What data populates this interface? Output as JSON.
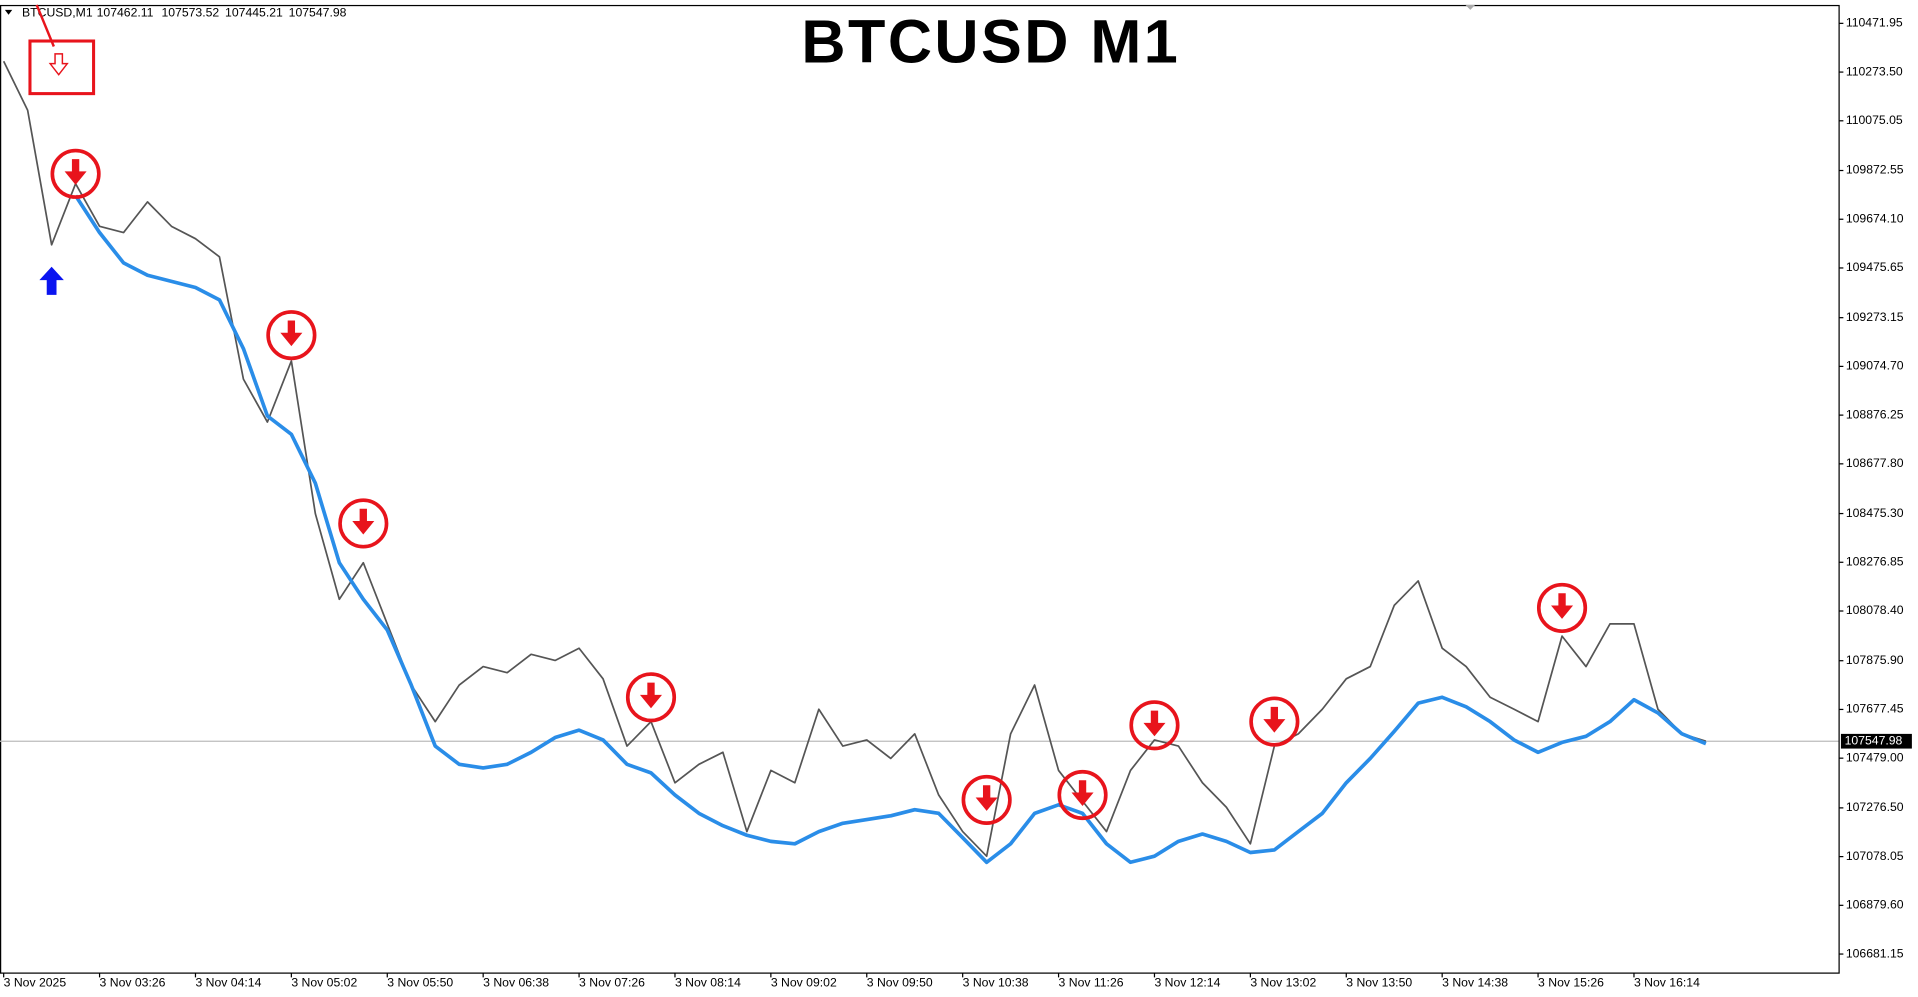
{
  "chart_data": {
    "type": "line",
    "title": "BTCUSD M1",
    "symbol": "BTCUSD,M1",
    "ohlc": [
      107462.11,
      107573.52,
      107445.21,
      107547.98
    ],
    "last_price": 107547.98,
    "categories": [
      "3 Nov 2025",
      null,
      null,
      null,
      "3 Nov 03:26",
      null,
      null,
      null,
      "3 Nov 04:14",
      null,
      null,
      null,
      "3 Nov 05:02",
      null,
      null,
      null,
      "3 Nov 05:50",
      null,
      null,
      null,
      "3 Nov 06:38",
      null,
      null,
      null,
      "3 Nov 07:26",
      null,
      null,
      null,
      "3 Nov 08:14",
      null,
      null,
      null,
      "3 Nov 09:02",
      null,
      null,
      null,
      "3 Nov 09:50",
      null,
      null,
      null,
      "3 Nov 10:38",
      null,
      null,
      null,
      "3 Nov 11:26",
      null,
      null,
      null,
      "3 Nov 12:14",
      null,
      null,
      null,
      "3 Nov 13:02",
      null,
      null,
      null,
      "3 Nov 13:50",
      null,
      null,
      null,
      "3 Nov 14:38",
      null,
      null,
      null,
      "3 Nov 15:26",
      null,
      null,
      null,
      "3 Nov 16:14",
      null,
      null,
      null
    ],
    "series": [
      {
        "color": "#555555",
        "values": [
          110318,
          110118,
          109570,
          109819,
          109645,
          109620,
          109745,
          109645,
          109595,
          109521,
          109023,
          108848,
          109097,
          108475,
          108126,
          108275,
          108026,
          107777,
          107628,
          107777,
          107852,
          107827,
          107902,
          107877,
          107927,
          107802,
          107528,
          107628,
          107379,
          107454,
          107503,
          107180,
          107429,
          107379,
          107678,
          107528,
          107553,
          107478,
          107578,
          107329,
          107180,
          107080,
          107578,
          107777,
          107429,
          107304,
          107180,
          107429,
          107553,
          107528,
          107379,
          107279,
          107130,
          107528,
          107578,
          107678,
          107802,
          107852,
          108101,
          108201,
          107927,
          107852,
          107727,
          107678,
          107628,
          107976,
          107852,
          108026,
          108026,
          107678,
          107578,
          107548
        ]
      },
      {
        "color": "#2a8de8",
        "values": [
          null,
          null,
          null,
          109770,
          109620,
          109496,
          109446,
          109421,
          109396,
          109346,
          109147,
          108873,
          108798,
          108599,
          108275,
          108126,
          108001,
          107777,
          107528,
          107454,
          107439,
          107454,
          107503,
          107563,
          107593,
          107553,
          107454,
          107419,
          107329,
          107254,
          107204,
          107165,
          107140,
          107130,
          107180,
          107214,
          107229,
          107244,
          107269,
          107254,
          107155,
          107055,
          107130,
          107254,
          107289,
          107254,
          107130,
          107055,
          107080,
          107140,
          107170,
          107140,
          107095,
          107105,
          107180,
          107254,
          107379,
          107478,
          107588,
          107703,
          107727,
          107688,
          107628,
          107553,
          107503,
          107543,
          107568,
          107628,
          107717,
          107663,
          107578,
          107538
        ]
      }
    ],
    "sell_signals": {
      "color": "#e8141c",
      "values": [
        null,
        null,
        null,
        109859,
        null,
        null,
        null,
        null,
        null,
        null,
        null,
        null,
        109202,
        null,
        null,
        108435,
        null,
        null,
        null,
        null,
        null,
        null,
        null,
        null,
        null,
        null,
        null,
        107727,
        null,
        null,
        null,
        null,
        null,
        null,
        null,
        null,
        null,
        null,
        null,
        null,
        null,
        107309,
        null,
        null,
        null,
        107329,
        null,
        null,
        107613,
        null,
        null,
        null,
        null,
        107628,
        null,
        null,
        null,
        null,
        null,
        null,
        null,
        null,
        null,
        null,
        null,
        108091,
        null,
        null,
        null,
        null,
        null,
        null
      ]
    },
    "buy_signals": {
      "color": "#0a14f0",
      "values": [
        null,
        null,
        109421,
        null,
        null,
        null,
        null,
        null,
        null,
        null,
        null,
        null,
        null,
        null,
        null,
        null,
        null,
        null,
        null,
        null,
        null,
        null,
        null,
        null,
        null,
        null,
        null,
        null,
        null,
        null,
        null,
        null,
        null,
        null,
        null,
        null,
        null,
        null,
        null,
        null,
        null,
        null,
        null,
        null,
        null,
        null,
        null,
        null,
        null,
        null,
        null,
        null,
        null,
        null,
        null,
        null,
        null,
        null,
        null,
        null,
        null,
        null,
        null,
        null,
        null,
        null,
        null,
        null,
        null,
        null,
        null,
        null
      ]
    },
    "ylim": [
      106606,
      110542
    ],
    "yticks": [
      110471.95,
      {
        "value": 110273.5,
        "label": "110273.50"
      },
      110075.05,
      109872.55,
      {
        "value": 109674.1,
        "label": "109674.10"
      },
      109475.65,
      109273.15,
      {
        "value": 109074.7,
        "label": "109074.70"
      },
      108876.25,
      {
        "value": 108677.8,
        "label": "108677.80"
      },
      {
        "value": 108475.3,
        "label": "108475.30"
      },
      108276.85,
      {
        "value": 108078.4,
        "label": "108078.40"
      },
      {
        "value": 107875.9,
        "label": "107875.90"
      },
      107677.45,
      {
        "value": 107479.0,
        "label": "107479.00"
      },
      {
        "value": 107276.5,
        "label": "107276.50"
      },
      107078.05,
      {
        "value": 106879.6,
        "label": "106879.60"
      },
      106681.15
    ],
    "grid": false
  }
}
